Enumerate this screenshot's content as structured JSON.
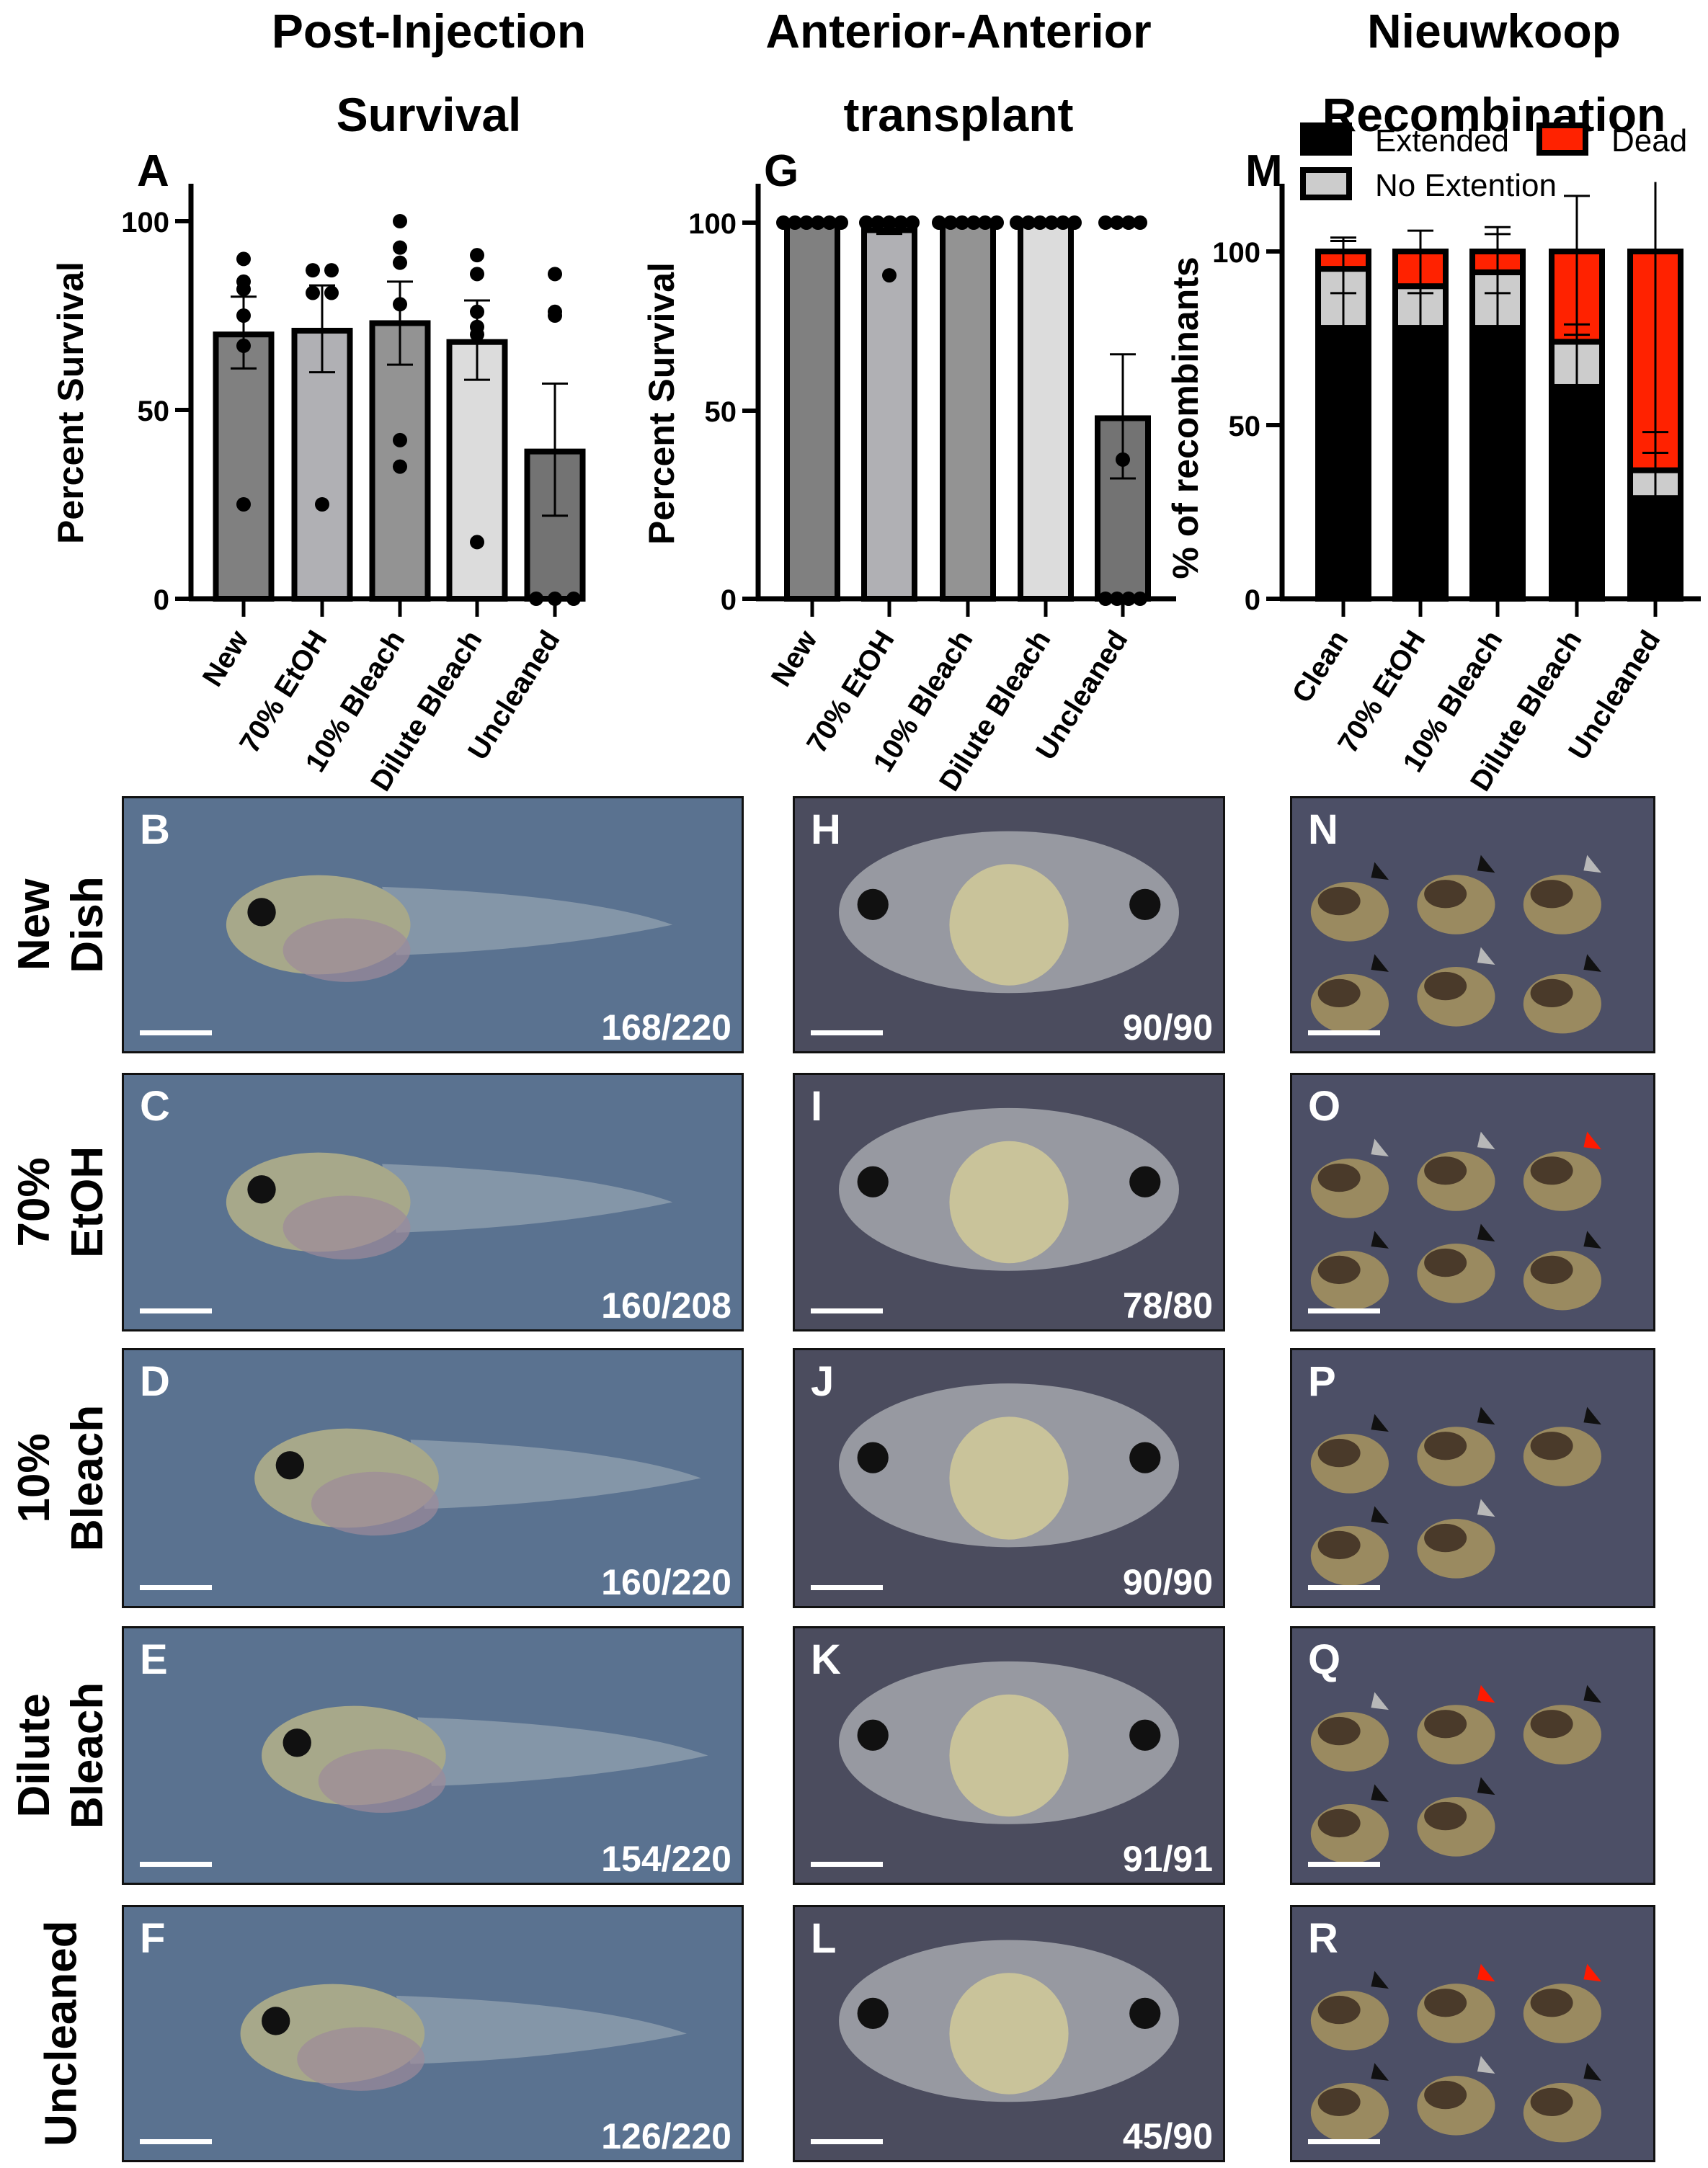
{
  "columns": [
    {
      "title_line1": "Post-Injection",
      "title_line2": "Survival"
    },
    {
      "title_line1": "Anterior-Anterior",
      "title_line2": "transplant"
    },
    {
      "title_line1": "Nieuwkoop",
      "title_line2": "Recombination"
    }
  ],
  "row_labels": [
    {
      "line1": "New",
      "line2": "Dish"
    },
    {
      "line1": "70%",
      "line2": "EtOH"
    },
    {
      "line1": "10%",
      "line2": "Bleach"
    },
    {
      "line1": "Dilute",
      "line2": "Bleach"
    },
    {
      "line1": "Uncleaned",
      "line2": ""
    }
  ],
  "chart_data": [
    {
      "panel": "A",
      "type": "bar",
      "ylabel": "Percent Survival",
      "ylim": [
        0,
        100
      ],
      "yticks": [
        "0",
        "50",
        "100"
      ],
      "categories": [
        "New",
        "70% EtOH",
        "10% Bleach",
        "Dilute Bleach",
        "Uncleaned"
      ],
      "values": [
        70,
        71,
        73,
        68,
        39
      ],
      "sem_low": [
        61,
        60,
        62,
        58,
        22
      ],
      "sem_high": [
        80,
        83,
        84,
        79,
        57
      ],
      "points": [
        [
          90,
          84,
          82,
          75,
          67,
          25
        ],
        [
          87,
          87,
          81,
          81,
          25
        ],
        [
          100,
          93,
          89,
          78,
          42,
          35
        ],
        [
          91,
          86,
          76,
          72,
          70,
          15
        ],
        [
          86,
          76,
          75,
          0,
          0,
          0
        ]
      ],
      "bar_colors": [
        "#808080",
        "#b0b0b4",
        "#939393",
        "#dcdcdc",
        "#737373"
      ]
    },
    {
      "panel": "G",
      "type": "bar",
      "ylabel": "Percent Survival",
      "ylim": [
        0,
        100
      ],
      "yticks": [
        "0",
        "50",
        "100"
      ],
      "categories": [
        "New",
        "70% EtOH",
        "10% Bleach",
        "Dilute Bleach",
        "Uncleaned"
      ],
      "values": [
        100,
        98,
        100,
        100,
        48
      ],
      "sem_low": [
        100,
        97,
        100,
        100,
        32
      ],
      "sem_high": [
        100,
        98,
        100,
        100,
        65
      ],
      "points": [
        [
          100,
          100,
          100,
          100,
          100,
          100
        ],
        [
          100,
          100,
          100,
          100,
          100,
          86
        ],
        [
          100,
          100,
          100,
          100,
          100,
          100
        ],
        [
          100,
          100,
          100,
          100,
          100,
          100
        ],
        [
          100,
          100,
          100,
          100,
          37,
          0,
          0,
          0,
          0
        ]
      ],
      "bar_colors": [
        "#808080",
        "#b0b0b4",
        "#939393",
        "#dcdcdc",
        "#737373"
      ]
    },
    {
      "panel": "M",
      "type": "stacked-bar",
      "ylabel": "% of recombinants",
      "ylim": [
        0,
        120
      ],
      "yticks": [
        "0",
        "50",
        "100"
      ],
      "categories": [
        "Clean",
        "70% EtOH",
        "10% Bleach",
        "Dilute Bleach",
        "Uncleaned"
      ],
      "series": [
        {
          "name": "Extended",
          "color": "#000000",
          "values": [
            78,
            78,
            78,
            61,
            29
          ]
        },
        {
          "name": "No Extention",
          "color": "#cccccc",
          "values": [
            17,
            12,
            16,
            13,
            8
          ]
        },
        {
          "name": "Dead",
          "color": "#ff2200",
          "values": [
            5,
            10,
            6,
            26,
            63
          ]
        }
      ],
      "error_caps": [
        [
          88,
          103,
          104
        ],
        [
          88,
          106
        ],
        [
          88,
          105,
          107
        ],
        [
          76,
          79,
          116
        ],
        [
          42,
          48,
          120
        ]
      ],
      "legend_position": "top"
    }
  ],
  "panels": [
    [
      {
        "letter": "B",
        "count": "168/220"
      },
      {
        "letter": "H",
        "count": "90/90"
      },
      {
        "letter": "N",
        "count": "",
        "arrows": [
          "black",
          "black",
          "gray",
          "black",
          "gray",
          "black"
        ]
      }
    ],
    [
      {
        "letter": "C",
        "count": "160/208"
      },
      {
        "letter": "I",
        "count": "78/80"
      },
      {
        "letter": "O",
        "count": "",
        "arrows": [
          "gray",
          "gray",
          "red",
          "black",
          "black",
          "black"
        ]
      }
    ],
    [
      {
        "letter": "D",
        "count": "160/220"
      },
      {
        "letter": "J",
        "count": "90/90"
      },
      {
        "letter": "P",
        "count": "",
        "arrows": [
          "black",
          "black",
          "black",
          "black",
          "gray"
        ]
      }
    ],
    [
      {
        "letter": "E",
        "count": "154/220"
      },
      {
        "letter": "K",
        "count": "91/91"
      },
      {
        "letter": "Q",
        "count": "",
        "arrows": [
          "gray",
          "red",
          "black",
          "black",
          "black"
        ]
      }
    ],
    [
      {
        "letter": "F",
        "count": "126/220"
      },
      {
        "letter": "L",
        "count": "45/90"
      },
      {
        "letter": "R",
        "count": "",
        "arrows": [
          "black",
          "red",
          "red",
          "black",
          "gray",
          "black"
        ]
      }
    ]
  ],
  "colors": {
    "arrow_black": "#111111",
    "arrow_gray": "#b8b8b8",
    "arrow_red": "#ff1a00",
    "tadpole_bg": "#5a7290",
    "embryo_bg": "#4b4c5e",
    "recomb_bg": "#4c4f66"
  }
}
